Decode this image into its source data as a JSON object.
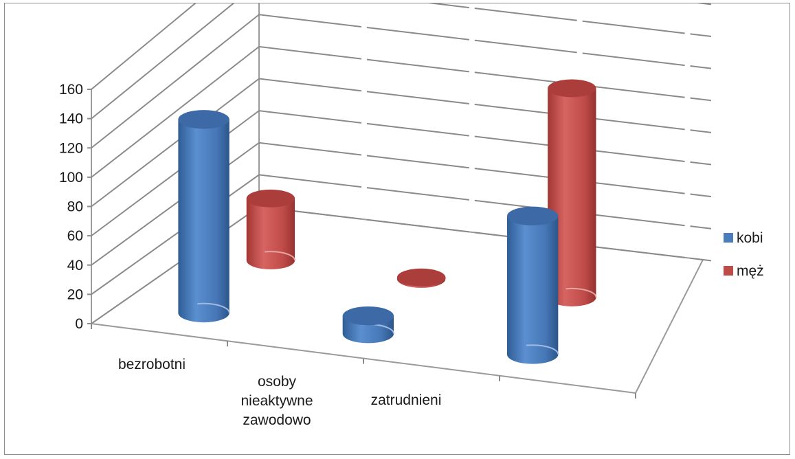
{
  "chart_data": {
    "type": "bar",
    "style": "3d-cylinder",
    "categories": [
      "bezrobotni",
      "osoby nieaktywne zawodowo",
      "zatrudnieni"
    ],
    "category_lines": [
      [
        "bezrobotni"
      ],
      [
        "osoby",
        "nieaktywne",
        "zawodowo"
      ],
      [
        "zatrudnieni"
      ]
    ],
    "series": [
      {
        "name": "kobi",
        "color": "#4a7ebb",
        "values": [
          130,
          12,
          93
        ]
      },
      {
        "name": "męż",
        "color": "#be4b48",
        "values": [
          40,
          1,
          135
        ]
      }
    ],
    "yticks": [
      "0",
      "20",
      "40",
      "60",
      "80",
      "100",
      "120",
      "140",
      "160"
    ],
    "ylim": [
      0,
      160
    ],
    "grid": true,
    "legend_position": "right"
  }
}
